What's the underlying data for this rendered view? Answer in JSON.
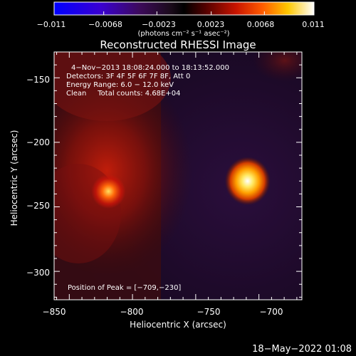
{
  "colorbar": {
    "tick_labels": [
      "−0.011",
      "−0.0068",
      "−0.0023",
      "0.0023",
      "0.0068",
      "0.011"
    ],
    "tick_values": [
      -0.011,
      -0.0068,
      -0.0023,
      0.0023,
      0.0068,
      0.011
    ],
    "range": [
      -0.011,
      0.011
    ],
    "unit_label": "(photons cm⁻² s⁻¹ asec⁻²)"
  },
  "chart_data": {
    "type": "heatmap",
    "title": "Reconstructed RHESSI Image",
    "xlabel": "Heliocentric X (arcsec)",
    "ylabel": "Heliocentric Y (arcsec)",
    "xlim": [
      -862,
      -666
    ],
    "ylim": [
      -322,
      -130
    ],
    "x_ticks": [
      -850,
      -800,
      -750,
      -700
    ],
    "x_tick_labels": [
      "−850",
      "−800",
      "−750",
      "−700"
    ],
    "y_ticks": [
      -150,
      -200,
      -250,
      -300
    ],
    "y_tick_labels": [
      "−150",
      "−200",
      "−250",
      "−300"
    ],
    "sources": [
      {
        "x": -709,
        "y": -230,
        "relative_intensity": 1.0
      },
      {
        "x": -819,
        "y": -238,
        "relative_intensity": 0.55
      }
    ],
    "annotations": [
      "4−Nov−2013 18:08:24.000 to 18:13:52.000",
      "Detectors: 3F 4F 5F 6F 7F 8F, Att 0",
      "Energy Range: 6.0 − 12.0 keV",
      "Clean     Total counts: 4.68E+04"
    ],
    "peak_label": "Position of Peak = [−709,−230]",
    "colormap": [
      "#0000ff",
      "#5a00b4",
      "#280a28",
      "#000000",
      "#500000",
      "#c81400",
      "#ff5a00",
      "#ffd700",
      "#ffffff"
    ]
  },
  "footer": {
    "timestamp": "18−May−2022 01:08"
  }
}
